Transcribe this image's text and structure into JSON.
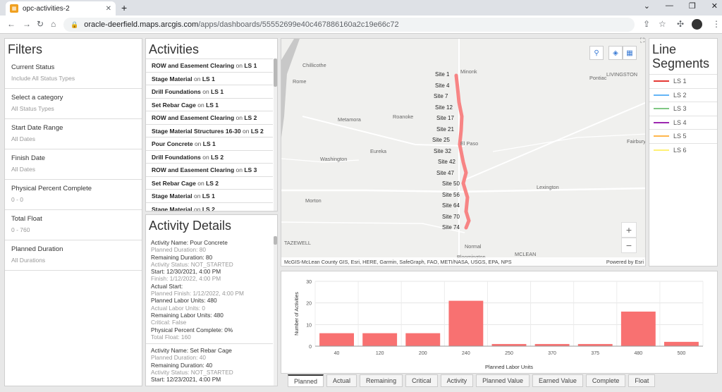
{
  "browser": {
    "tab_title": "opc-activities-2",
    "url_host": "oracle-deerfield.maps.arcgis.com",
    "url_path": "/apps/dashboards/55552699e40c467886160a2c19e66c72"
  },
  "filters": {
    "title": "Filters",
    "items": [
      {
        "label": "Current Status",
        "value": "Include All Status Types"
      },
      {
        "label": "Select a category",
        "value": "All Status Types"
      },
      {
        "label": "Start Date Range",
        "value": "All Dates"
      },
      {
        "label": "Finish Date",
        "value": "All Dates"
      },
      {
        "label": "Physical Percent Complete",
        "value": "0 - 0"
      },
      {
        "label": "Total Float",
        "value": "0 - 760"
      },
      {
        "label": "Planned Duration",
        "value": "All Durations"
      }
    ]
  },
  "activities": {
    "title": "Activities",
    "on_word": "on",
    "items": [
      {
        "name": "ROW and Easement Clearing",
        "segment": "LS 1"
      },
      {
        "name": "Stage Material",
        "segment": "LS 1"
      },
      {
        "name": "Drill Foundations",
        "segment": "LS 1"
      },
      {
        "name": "Set Rebar Cage",
        "segment": "LS 1"
      },
      {
        "name": "ROW and Easement Clearing",
        "segment": "LS 2"
      },
      {
        "name": "Stage Material Structures 16-30",
        "segment": "LS 2"
      },
      {
        "name": "Pour Concrete",
        "segment": "LS 1"
      },
      {
        "name": "Drill Foundations",
        "segment": "LS 2"
      },
      {
        "name": "ROW and Easement Clearing",
        "segment": "LS 3"
      },
      {
        "name": "Set Rebar Cage",
        "segment": "LS 2"
      },
      {
        "name": "Stage Material",
        "segment": "LS 1"
      },
      {
        "name": "Stage Material",
        "segment": "LS 2"
      }
    ]
  },
  "details": {
    "title": "Activity Details",
    "records": [
      {
        "lines": [
          {
            "text": "Activity Name: Pour Concrete",
            "tone": "dark"
          },
          {
            "text": "Planned Duration: 80",
            "tone": "light"
          },
          {
            "text": "Remaining Duration: 80",
            "tone": "dark"
          },
          {
            "text": "Activity Status: NOT_STARTED",
            "tone": "light"
          },
          {
            "text": "Start: 12/30/2021, 4:00 PM",
            "tone": "dark"
          },
          {
            "text": "Finish: 1/12/2022, 4:00 PM",
            "tone": "light"
          },
          {
            "text": "Actual Start:",
            "tone": "dark"
          },
          {
            "text": "Planned Finish: 1/12/2022, 4:00 PM",
            "tone": "light"
          },
          {
            "text": "Planned Labor Units: 480",
            "tone": "dark"
          },
          {
            "text": "Actual Labor Units: 0",
            "tone": "light"
          },
          {
            "text": "Remaining Labor Units: 480",
            "tone": "dark"
          },
          {
            "text": "Critical: False",
            "tone": "light"
          },
          {
            "text": "Physical Percent Complete: 0%",
            "tone": "dark"
          },
          {
            "text": "Total Float: 160",
            "tone": "light"
          }
        ]
      },
      {
        "lines": [
          {
            "text": "Activity Name: Set Rebar Cage",
            "tone": "dark"
          },
          {
            "text": "Planned Duration: 40",
            "tone": "light"
          },
          {
            "text": "Remaining Duration: 40",
            "tone": "dark"
          },
          {
            "text": "Activity Status: NOT_STARTED",
            "tone": "light"
          },
          {
            "text": "Start: 12/23/2021, 4:00 PM",
            "tone": "dark"
          }
        ]
      }
    ]
  },
  "map": {
    "towns": [
      {
        "name": "Chillicothe",
        "x": 30,
        "y": 33
      },
      {
        "name": "Minonk",
        "x": 254,
        "y": 42
      },
      {
        "name": "Pontiac",
        "x": 437,
        "y": 51
      },
      {
        "name": "LIVINGSTON",
        "x": 461,
        "y": 46
      },
      {
        "name": "Rome",
        "x": 16,
        "y": 56
      },
      {
        "name": "Metamora",
        "x": 80,
        "y": 110
      },
      {
        "name": "Roanoke",
        "x": 158,
        "y": 106
      },
      {
        "name": "El Paso",
        "x": 254,
        "y": 144
      },
      {
        "name": "Fairbury",
        "x": 490,
        "y": 141
      },
      {
        "name": "Eureka",
        "x": 126,
        "y": 155
      },
      {
        "name": "Washington",
        "x": 55,
        "y": 166
      },
      {
        "name": "Lexington",
        "x": 362,
        "y": 206
      },
      {
        "name": "Morton",
        "x": 34,
        "y": 225
      },
      {
        "name": "TAZEWELL",
        "x": 4,
        "y": 285
      },
      {
        "name": "Normal",
        "x": 260,
        "y": 290
      },
      {
        "name": "MCLEAN",
        "x": 331,
        "y": 301
      },
      {
        "name": "Bloomington",
        "x": 249,
        "y": 305
      }
    ],
    "sites": [
      "Site 1",
      "Site 4",
      "Site 7",
      "Site 12",
      "Site 17",
      "Site 21",
      "Site 25",
      "Site 32",
      "Site 42",
      "Site 47",
      "Site 50",
      "Site 56",
      "Site 64",
      "Site 70",
      "Site 74"
    ],
    "attribution": "McGIS-McLean County GIS, Esri, HERE, Garmin, SafeGraph, FAO, METI/NASA, USGS, EPA, NPS",
    "powered": "Powered by Esri",
    "zoom_in": "+",
    "zoom_out": "−"
  },
  "segments": {
    "title": "Line Segments",
    "items": [
      {
        "label": "LS 1",
        "color": "#e53935"
      },
      {
        "label": "LS 2",
        "color": "#64b5f6"
      },
      {
        "label": "LS 3",
        "color": "#81c784"
      },
      {
        "label": "LS 4",
        "color": "#9c27b0"
      },
      {
        "label": "LS 5",
        "color": "#ffb74d"
      },
      {
        "label": "LS 6",
        "color": "#fff176"
      }
    ]
  },
  "chart_data": {
    "type": "bar",
    "categories": [
      "40",
      "120",
      "200",
      "240",
      "250",
      "370",
      "375",
      "480",
      "500"
    ],
    "values": [
      6,
      6,
      6,
      21,
      1,
      1,
      1,
      16,
      2
    ],
    "xlabel": "Planned Labor Units",
    "ylabel": "Number of Activities",
    "ylim": [
      0,
      30
    ],
    "yticks": [
      0,
      10,
      20,
      30
    ],
    "bar_color": "#f87171",
    "grid": true
  },
  "bottom_tabs": [
    "Planned",
    "Actual",
    "Remaining",
    "Critical",
    "Activity",
    "Planned Value",
    "Earned Value",
    "Complete",
    "Float"
  ],
  "active_tab": "Planned"
}
